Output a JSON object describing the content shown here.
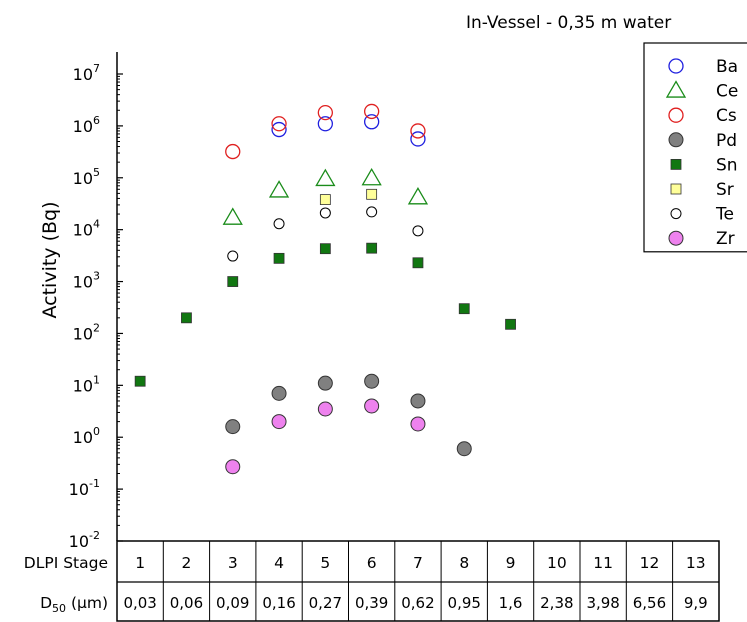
{
  "chart_data": {
    "type": "scatter",
    "title": "In-Vessel - 0,35 m water",
    "ylabel": "Activity (Bq)",
    "yscale": "log",
    "ylim": [
      0.01,
      10000000
    ],
    "y_ticks": [
      {
        "value": 0.01,
        "base": "10",
        "exp": "-2"
      },
      {
        "value": 0.1,
        "base": "10",
        "exp": "-1"
      },
      {
        "value": 1,
        "base": "10",
        "exp": "0"
      },
      {
        "value": 10,
        "base": "10",
        "exp": "1"
      },
      {
        "value": 100,
        "base": "10",
        "exp": "2"
      },
      {
        "value": 1000,
        "base": "10",
        "exp": "3"
      },
      {
        "value": 10000,
        "base": "10",
        "exp": "4"
      },
      {
        "value": 100000,
        "base": "10",
        "exp": "5"
      },
      {
        "value": 1000000,
        "base": "10",
        "exp": "6"
      },
      {
        "value": 10000000,
        "base": "10",
        "exp": "7"
      }
    ],
    "x_table": {
      "stage_label": "DLPI Stage",
      "d50_label_main": "D",
      "d50_label_sub": "50",
      "d50_label_unit": " (µm)",
      "stages": [
        "1",
        "2",
        "3",
        "4",
        "5",
        "6",
        "7",
        "8",
        "9",
        "10",
        "11",
        "12",
        "13"
      ],
      "d50": [
        "0,03",
        "0,06",
        "0,09",
        "0,16",
        "0,27",
        "0,39",
        "0,62",
        "0,95",
        "1,6",
        "2,38",
        "3,98",
        "6,56",
        "9,9"
      ]
    },
    "legend_position": "top-right",
    "series": [
      {
        "name": "Ba",
        "marker": "circle-open",
        "color": "#1f1fdf",
        "points": [
          [
            4,
            850000
          ],
          [
            5,
            1100000
          ],
          [
            6,
            1200000
          ],
          [
            7,
            560000
          ]
        ]
      },
      {
        "name": "Ce",
        "marker": "triangle-open",
        "color": "#1a8c1a",
        "points": [
          [
            3,
            17000
          ],
          [
            4,
            57000
          ],
          [
            5,
            95000
          ],
          [
            6,
            98000
          ],
          [
            7,
            42000
          ]
        ]
      },
      {
        "name": "Cs",
        "marker": "circle-open",
        "color": "#e02020",
        "points": [
          [
            3,
            320000
          ],
          [
            4,
            1100000
          ],
          [
            5,
            1800000
          ],
          [
            6,
            1900000
          ],
          [
            7,
            800000
          ]
        ]
      },
      {
        "name": "Pd",
        "marker": "circle-filled",
        "color": "#808080",
        "points": [
          [
            3,
            1.6
          ],
          [
            4,
            7
          ],
          [
            5,
            11
          ],
          [
            6,
            12
          ],
          [
            7,
            5
          ],
          [
            8,
            0.6
          ]
        ]
      },
      {
        "name": "Sn",
        "marker": "square-filled",
        "color": "#117711",
        "points": [
          [
            1,
            12
          ],
          [
            2,
            200
          ],
          [
            3,
            1000
          ],
          [
            4,
            2800
          ],
          [
            5,
            4300
          ],
          [
            6,
            4400
          ],
          [
            7,
            2300
          ],
          [
            8,
            300
          ],
          [
            9,
            150
          ]
        ]
      },
      {
        "name": "Sr",
        "marker": "square-filled",
        "color": "#ffff99",
        "points": [
          [
            5,
            38000
          ],
          [
            6,
            48000
          ]
        ]
      },
      {
        "name": "Te",
        "marker": "circle-small",
        "color": "#ffffff",
        "points": [
          [
            3,
            3100
          ],
          [
            4,
            13000
          ],
          [
            5,
            21000
          ],
          [
            6,
            22000
          ],
          [
            7,
            9500
          ]
        ]
      },
      {
        "name": "Zr",
        "marker": "circle-filled",
        "color": "#ee82ee",
        "points": [
          [
            3,
            0.27
          ],
          [
            4,
            2
          ],
          [
            5,
            3.5
          ],
          [
            6,
            4
          ],
          [
            7,
            1.8
          ]
        ]
      }
    ]
  }
}
